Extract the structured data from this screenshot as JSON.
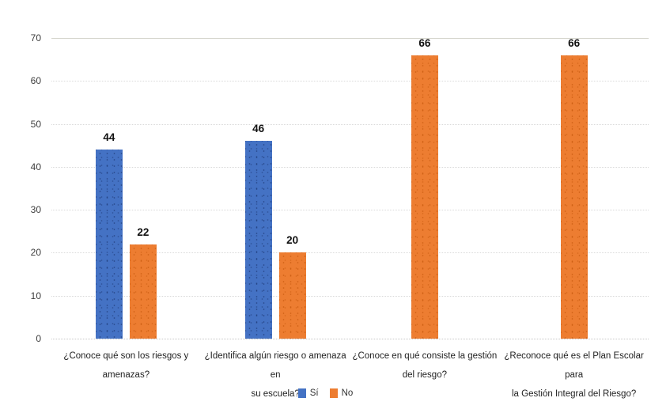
{
  "chart_data": {
    "type": "bar",
    "title": "",
    "categories": [
      {
        "label": "¿Conoce qué son los riesgos y amenazas?",
        "lines": [
          "¿Conoce qué son los riesgos y",
          "amenazas?"
        ]
      },
      {
        "label": "¿Identifica algún riesgo o amenaza en su escuela?",
        "lines": [
          "¿Identifica algún riesgo o amenaza en",
          "su escuela?"
        ]
      },
      {
        "label": "¿Conoce en qué consiste la gestión del riesgo?",
        "lines": [
          "¿Conoce en qué consiste la gestión",
          "del riesgo?"
        ]
      },
      {
        "label": "¿Reconoce qué es el Plan Escolar para la Gestión Integral del Riesgo?",
        "lines": [
          "¿Reconoce qué es el Plan Escolar para",
          "la Gestión Integral del Riesgo?"
        ]
      }
    ],
    "series": [
      {
        "name": "Sí",
        "color": "#4472C4",
        "values": [
          44,
          46,
          null,
          null
        ]
      },
      {
        "name": "No",
        "color": "#ED7D31",
        "values": [
          22,
          20,
          66,
          66
        ]
      }
    ],
    "ylim": [
      0,
      70
    ],
    "yticks": [
      0,
      10,
      20,
      30,
      40,
      50,
      60,
      70
    ],
    "grid": "horizontal",
    "gridline_style": "dotted",
    "legend_position": "bottom",
    "background": "#FFFFFF"
  }
}
